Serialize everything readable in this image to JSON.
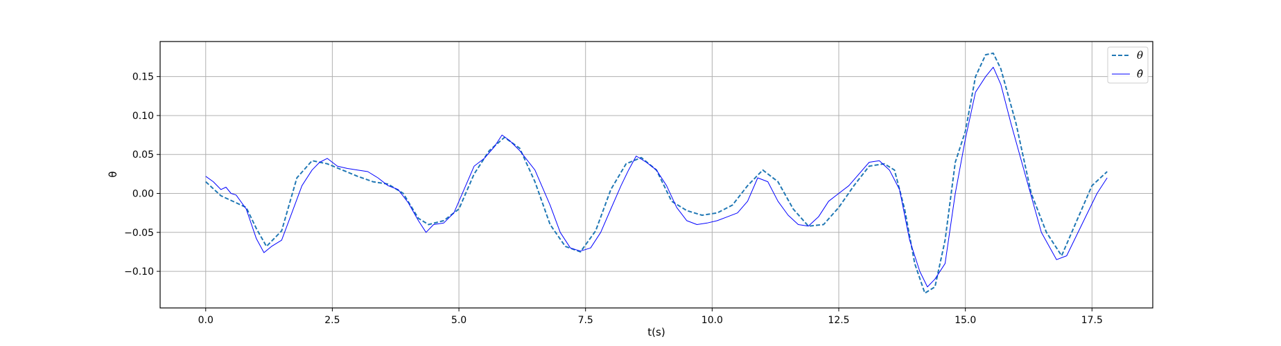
{
  "chart_data": {
    "type": "line",
    "title": "",
    "xlabel": "t(s)",
    "ylabel": "θ",
    "xlim": [
      -0.9,
      18.7
    ],
    "ylim": [
      -0.147,
      0.195
    ],
    "xticks": [
      0.0,
      2.5,
      5.0,
      7.5,
      10.0,
      12.5,
      15.0,
      17.5
    ],
    "xtick_labels": [
      "0.0",
      "2.5",
      "5.0",
      "7.5",
      "10.0",
      "12.5",
      "15.0",
      "17.5"
    ],
    "yticks": [
      -0.1,
      -0.05,
      0.0,
      0.05,
      0.1,
      0.15
    ],
    "ytick_labels": [
      "−0.10",
      "−0.05",
      "0.00",
      "0.05",
      "0.10",
      "0.15"
    ],
    "grid": true,
    "legend": {
      "position": "top-right"
    },
    "series": [
      {
        "name": "θ",
        "style": "dashed",
        "color": "#1f77b4",
        "x": [
          0.0,
          0.3,
          0.6,
          0.8,
          1.0,
          1.2,
          1.5,
          1.8,
          2.1,
          2.4,
          2.7,
          3.0,
          3.3,
          3.6,
          3.9,
          4.2,
          4.4,
          4.7,
          5.0,
          5.3,
          5.6,
          5.9,
          6.2,
          6.5,
          6.8,
          7.1,
          7.4,
          7.7,
          8.0,
          8.3,
          8.6,
          8.9,
          9.2,
          9.5,
          9.8,
          10.1,
          10.4,
          10.7,
          11.0,
          11.3,
          11.6,
          11.9,
          12.2,
          12.5,
          12.8,
          13.1,
          13.4,
          13.6,
          13.8,
          14.0,
          14.2,
          14.4,
          14.6,
          14.8,
          15.0,
          15.2,
          15.4,
          15.55,
          15.7,
          16.0,
          16.3,
          16.6,
          16.9,
          17.2,
          17.5,
          17.8
        ],
        "y": [
          0.015,
          -0.003,
          -0.012,
          -0.018,
          -0.045,
          -0.068,
          -0.048,
          0.02,
          0.042,
          0.038,
          0.03,
          0.022,
          0.015,
          0.012,
          0.0,
          -0.032,
          -0.04,
          -0.035,
          -0.02,
          0.025,
          0.055,
          0.072,
          0.058,
          0.015,
          -0.04,
          -0.068,
          -0.075,
          -0.048,
          0.005,
          0.038,
          0.046,
          0.03,
          -0.01,
          -0.022,
          -0.028,
          -0.025,
          -0.015,
          0.01,
          0.03,
          0.015,
          -0.02,
          -0.042,
          -0.04,
          -0.018,
          0.01,
          0.035,
          0.038,
          0.03,
          -0.02,
          -0.09,
          -0.128,
          -0.12,
          -0.06,
          0.04,
          0.08,
          0.15,
          0.178,
          0.18,
          0.16,
          0.09,
          0.0,
          -0.05,
          -0.08,
          -0.035,
          0.01,
          0.028
        ]
      },
      {
        "name": "θ̂",
        "style": "solid",
        "color": "#0000ff",
        "x": [
          0.0,
          0.15,
          0.3,
          0.4,
          0.5,
          0.6,
          0.8,
          1.0,
          1.15,
          1.3,
          1.5,
          1.7,
          1.9,
          2.1,
          2.25,
          2.4,
          2.6,
          2.8,
          3.0,
          3.2,
          3.4,
          3.6,
          3.8,
          4.0,
          4.2,
          4.35,
          4.5,
          4.7,
          4.9,
          5.1,
          5.3,
          5.5,
          5.7,
          5.85,
          6.0,
          6.2,
          6.5,
          6.8,
          7.0,
          7.2,
          7.4,
          7.6,
          7.8,
          8.0,
          8.2,
          8.35,
          8.5,
          8.7,
          8.9,
          9.1,
          9.3,
          9.5,
          9.7,
          9.9,
          10.1,
          10.3,
          10.5,
          10.7,
          10.9,
          11.1,
          11.3,
          11.5,
          11.7,
          11.9,
          12.1,
          12.3,
          12.5,
          12.7,
          12.9,
          13.1,
          13.3,
          13.5,
          13.7,
          13.9,
          14.1,
          14.25,
          14.4,
          14.6,
          14.8,
          15.0,
          15.2,
          15.4,
          15.55,
          15.7,
          15.9,
          16.2,
          16.5,
          16.8,
          17.0,
          17.3,
          17.6,
          17.8
        ],
        "y": [
          0.022,
          0.015,
          0.005,
          0.008,
          0.0,
          -0.002,
          -0.02,
          -0.058,
          -0.076,
          -0.068,
          -0.06,
          -0.025,
          0.01,
          0.03,
          0.04,
          0.045,
          0.035,
          0.032,
          0.03,
          0.028,
          0.02,
          0.01,
          0.005,
          -0.012,
          -0.035,
          -0.05,
          -0.04,
          -0.038,
          -0.025,
          0.005,
          0.035,
          0.045,
          0.06,
          0.075,
          0.068,
          0.055,
          0.03,
          -0.015,
          -0.05,
          -0.07,
          -0.074,
          -0.07,
          -0.05,
          -0.02,
          0.01,
          0.03,
          0.048,
          0.04,
          0.03,
          0.01,
          -0.018,
          -0.035,
          -0.04,
          -0.038,
          -0.035,
          -0.03,
          -0.025,
          -0.01,
          0.02,
          0.015,
          -0.01,
          -0.028,
          -0.04,
          -0.042,
          -0.03,
          -0.01,
          0.0,
          0.01,
          0.025,
          0.04,
          0.042,
          0.03,
          0.005,
          -0.06,
          -0.1,
          -0.12,
          -0.11,
          -0.09,
          0.0,
          0.07,
          0.13,
          0.15,
          0.162,
          0.14,
          0.09,
          0.02,
          -0.05,
          -0.085,
          -0.08,
          -0.04,
          0.0,
          0.02
        ]
      }
    ]
  }
}
